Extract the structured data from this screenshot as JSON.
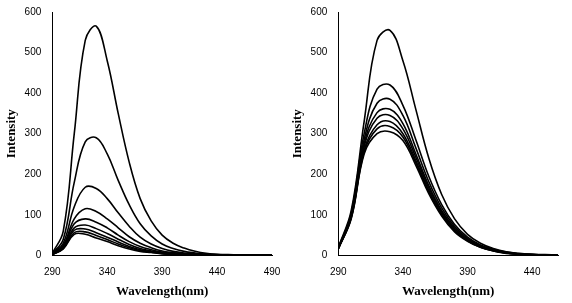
{
  "chart_data": [
    {
      "type": "line",
      "x_label": "Wavelength(nm)",
      "y_label": "Intensity",
      "x": [
        290,
        300,
        310,
        320,
        330,
        340,
        350,
        360,
        370,
        380,
        390,
        400,
        410,
        420,
        430,
        440,
        450,
        460,
        470,
        480,
        490
      ],
      "xlim": [
        290,
        490
      ],
      "xticks": [
        290,
        340,
        390,
        440,
        490
      ],
      "ylim": [
        0,
        600
      ],
      "yticks": [
        0,
        100,
        200,
        300,
        400,
        500,
        600
      ],
      "grid": false,
      "series": [
        {
          "color": "#000000",
          "values": [
            5,
            60,
            300,
            530,
            565,
            480,
            350,
            230,
            140,
            85,
            50,
            30,
            18,
            10,
            5,
            3,
            2,
            1,
            0,
            0,
            0
          ]
        },
        {
          "color": "#000000",
          "values": [
            4,
            40,
            180,
            280,
            290,
            250,
            185,
            125,
            78,
            48,
            28,
            17,
            10,
            6,
            3,
            2,
            1,
            0,
            0,
            0,
            0
          ]
        },
        {
          "color": "#000000",
          "values": [
            3,
            30,
            120,
            168,
            165,
            140,
            105,
            72,
            45,
            28,
            17,
            10,
            6,
            4,
            2,
            1,
            1,
            0,
            0,
            0,
            0
          ]
        },
        {
          "color": "#000000",
          "values": [
            3,
            25,
            90,
            115,
            108,
            90,
            68,
            46,
            30,
            19,
            11,
            7,
            4,
            2,
            1,
            1,
            0,
            0,
            0,
            0,
            0
          ]
        },
        {
          "color": "#000000",
          "values": [
            2,
            22,
            78,
            90,
            82,
            68,
            50,
            34,
            22,
            14,
            8,
            5,
            3,
            2,
            1,
            0,
            0,
            0,
            0,
            0,
            0
          ]
        },
        {
          "color": "#000000",
          "values": [
            2,
            20,
            68,
            75,
            66,
            54,
            40,
            27,
            17,
            11,
            6,
            4,
            2,
            1,
            1,
            0,
            0,
            0,
            0,
            0,
            0
          ]
        },
        {
          "color": "#000000",
          "values": [
            2,
            18,
            62,
            65,
            56,
            45,
            33,
            22,
            14,
            9,
            5,
            3,
            2,
            1,
            0,
            0,
            0,
            0,
            0,
            0,
            0
          ]
        },
        {
          "color": "#000000",
          "values": [
            2,
            17,
            56,
            58,
            49,
            39,
            28,
            19,
            12,
            8,
            4,
            3,
            1,
            1,
            0,
            0,
            0,
            0,
            0,
            0,
            0
          ]
        },
        {
          "color": "#000000",
          "values": [
            2,
            16,
            52,
            52,
            43,
            34,
            24,
            16,
            10,
            7,
            4,
            2,
            1,
            0,
            0,
            0,
            0,
            0,
            0,
            0,
            0
          ]
        }
      ]
    },
    {
      "type": "line",
      "x_label": "Wavelength(nm)",
      "y_label": "Intensity",
      "x": [
        290,
        300,
        310,
        320,
        330,
        340,
        350,
        360,
        370,
        380,
        390,
        400,
        410,
        420,
        430,
        440,
        450,
        460
      ],
      "xlim": [
        290,
        460
      ],
      "xticks": [
        290,
        340,
        390,
        440
      ],
      "ylim": [
        0,
        600
      ],
      "yticks": [
        0,
        100,
        200,
        300,
        400,
        500,
        600
      ],
      "grid": false,
      "series": [
        {
          "color": "#000000",
          "values": [
            20,
            110,
            330,
            530,
            555,
            480,
            360,
            240,
            150,
            90,
            52,
            30,
            17,
            9,
            5,
            3,
            2,
            1
          ]
        },
        {
          "color": "#000000",
          "values": [
            18,
            105,
            300,
            410,
            420,
            370,
            285,
            195,
            125,
            76,
            45,
            26,
            15,
            8,
            4,
            2,
            1,
            1
          ]
        },
        {
          "color": "#000000",
          "values": [
            18,
            100,
            285,
            375,
            385,
            345,
            265,
            182,
            117,
            71,
            42,
            24,
            14,
            7,
            4,
            2,
            1,
            1
          ]
        },
        {
          "color": "#000000",
          "values": [
            17,
            98,
            275,
            352,
            360,
            325,
            250,
            172,
            110,
            67,
            40,
            23,
            13,
            7,
            3,
            2,
            1,
            0
          ]
        },
        {
          "color": "#000000",
          "values": [
            17,
            96,
            268,
            338,
            345,
            312,
            242,
            166,
            107,
            65,
            38,
            22,
            12,
            6,
            3,
            2,
            1,
            0
          ]
        },
        {
          "color": "#000000",
          "values": [
            16,
            94,
            260,
            322,
            330,
            300,
            234,
            160,
            103,
            62,
            37,
            21,
            12,
            6,
            3,
            1,
            1,
            0
          ]
        },
        {
          "color": "#000000",
          "values": [
            16,
            92,
            255,
            312,
            318,
            292,
            228,
            156,
            100,
            60,
            36,
            20,
            11,
            6,
            3,
            1,
            1,
            0
          ]
        },
        {
          "color": "#000000",
          "values": [
            16,
            90,
            250,
            300,
            305,
            283,
            222,
            152,
            97,
            58,
            35,
            20,
            11,
            5,
            3,
            1,
            0,
            0
          ]
        }
      ]
    }
  ]
}
